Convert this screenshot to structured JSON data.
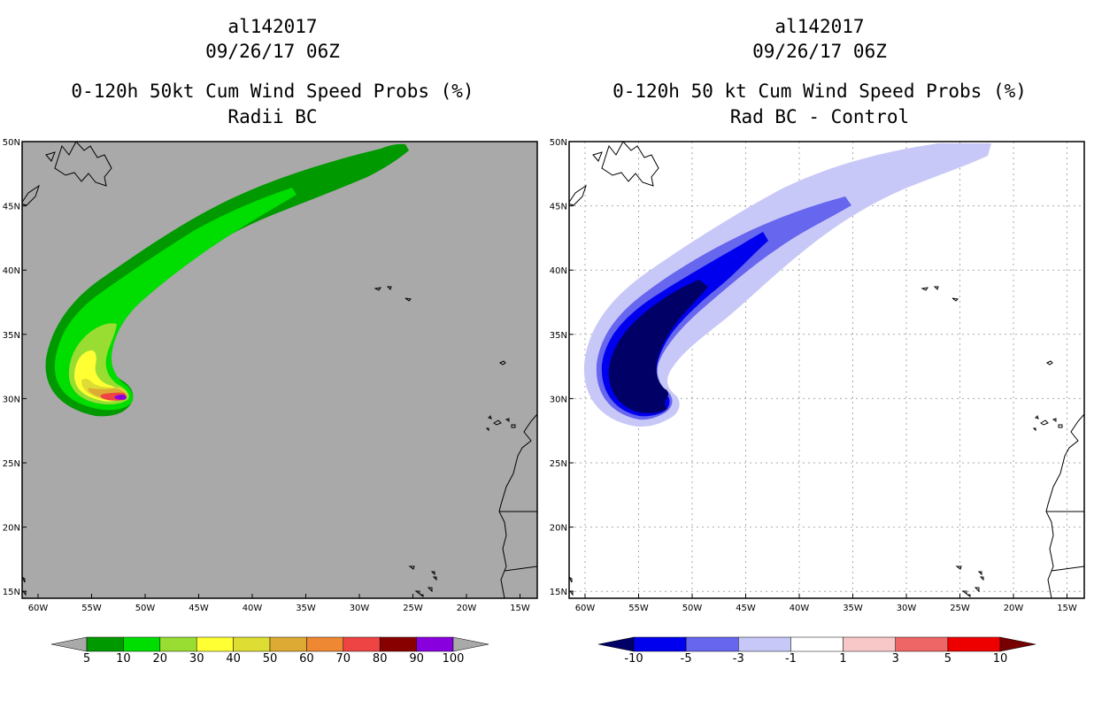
{
  "left_panel": {
    "storm_id": "al142017",
    "datetime": "09/26/17 06Z",
    "title": "0-120h 50kt Cum Wind Speed Probs (%)",
    "subtitle": "Radii BC",
    "background_color": "#a9a9a9"
  },
  "right_panel": {
    "storm_id": "al142017",
    "datetime": "09/26/17 06Z",
    "title": "0-120h 50 kt Cum Wind Speed Probs (%)",
    "subtitle": "Rad BC - Control",
    "background_color": "#ffffff"
  },
  "axes": {
    "lat_labels": [
      "50N",
      "45N",
      "40N",
      "35N",
      "30N",
      "25N",
      "20N",
      "15N"
    ],
    "lon_labels": [
      "60W",
      "55W",
      "50W",
      "45W",
      "40W",
      "35W",
      "30W",
      "25W",
      "20W",
      "15W"
    ]
  },
  "left_colorbar": {
    "labels": [
      "5",
      "10",
      "20",
      "30",
      "40",
      "50",
      "60",
      "70",
      "80",
      "90",
      "100"
    ],
    "colors": [
      "#a9a9a9",
      "#009900",
      "#00dd00",
      "#99dd33",
      "#ffff33",
      "#dddd33",
      "#ddaa33",
      "#ee8833",
      "#ee4444",
      "#880000",
      "#8800dd",
      "#a9a9a9"
    ]
  },
  "right_colorbar": {
    "labels": [
      "-10",
      "-5",
      "-3",
      "-1",
      "1",
      "3",
      "5",
      "10"
    ],
    "colors": [
      "#000066",
      "#0000ee",
      "#6666ee",
      "#c8c8f8",
      "#ffffff",
      "#f8c8c8",
      "#ee6666",
      "#ee0000",
      "#770000"
    ]
  }
}
